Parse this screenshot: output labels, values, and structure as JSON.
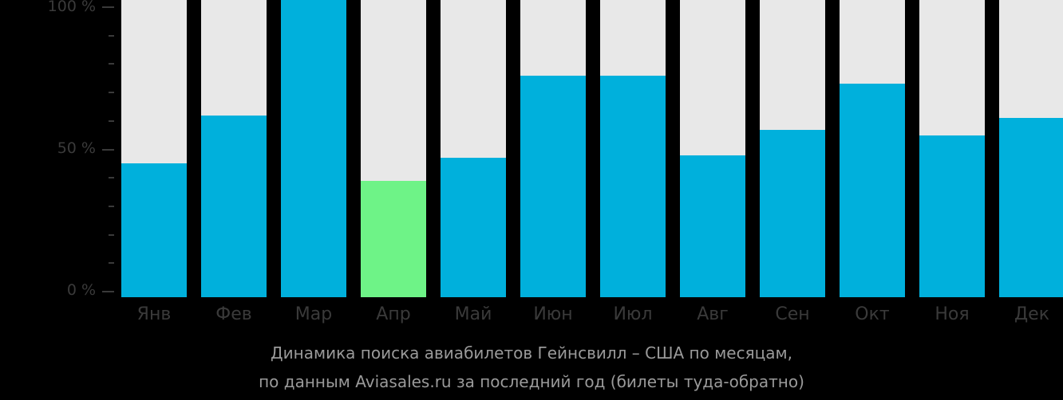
{
  "chart_data": {
    "type": "bar",
    "title": "Динамика поиска авиабилетов Гейнсвилл – США по месяцам,",
    "subtitle": "по данным Aviasales.ru за последний год (билеты туда-обратно)",
    "xlabel": "",
    "ylabel": "",
    "ylim": [
      0,
      100
    ],
    "yticks": [
      "0 %",
      "50 %",
      "100 %"
    ],
    "grid": false,
    "legend": null,
    "categories": [
      "Янв",
      "Фев",
      "Мар",
      "Апр",
      "Май",
      "Июн",
      "Июл",
      "Авг",
      "Сен",
      "Окт",
      "Ноя",
      "Дек"
    ],
    "values": [
      45,
      62,
      100,
      39,
      47,
      76,
      76,
      48,
      57,
      73,
      55,
      61
    ],
    "highlight_index": 3
  },
  "colors": {
    "bar": "#00b0dc",
    "bar_highlight": "#6ef387",
    "track": "#e8e8e8",
    "axis_text": "#3a3a3a",
    "caption_text": "#9a9a9a"
  },
  "caption": {
    "line1": "Динамика поиска авиабилетов Гейнсвилл – США по месяцам,",
    "line2": "по данным Aviasales.ru за последний год (билеты туда-обратно)"
  },
  "y_axis": {
    "labels": [
      "100 %",
      "50 %",
      "0 %"
    ]
  }
}
